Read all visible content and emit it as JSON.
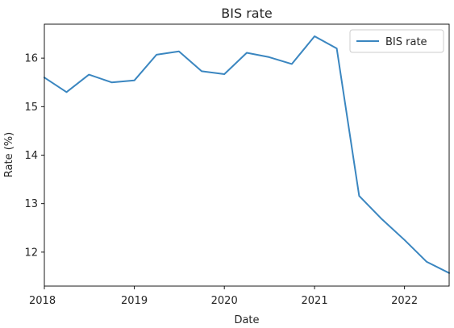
{
  "chart_data": {
    "type": "line",
    "title": "BIS rate",
    "xlabel": "Date",
    "ylabel": "Rate (%)",
    "x_ticks": [
      "2018",
      "2019",
      "2020",
      "2021",
      "2022"
    ],
    "y_ticks": [
      "12",
      "13",
      "14",
      "15",
      "16"
    ],
    "xlim": [
      "2018-01-01",
      "2022-07-01"
    ],
    "ylim": [
      11.3,
      16.7
    ],
    "grid": false,
    "legend_position": "top-right",
    "series": [
      {
        "name": "BIS rate",
        "color": "#3a86c0",
        "x": [
          "2018-01-01",
          "2018-04-01",
          "2018-07-01",
          "2018-10-01",
          "2019-01-01",
          "2019-04-01",
          "2019-07-01",
          "2019-10-01",
          "2020-01-01",
          "2020-04-01",
          "2020-07-01",
          "2020-10-01",
          "2021-01-01",
          "2021-04-01",
          "2021-07-01",
          "2021-10-01",
          "2022-01-01",
          "2022-04-01",
          "2022-07-01"
        ],
        "y": [
          15.6,
          15.3,
          15.66,
          15.5,
          15.54,
          16.07,
          16.14,
          15.73,
          15.67,
          16.11,
          16.02,
          15.88,
          16.45,
          16.2,
          13.16,
          12.68,
          12.25,
          11.8,
          11.57
        ]
      }
    ]
  }
}
